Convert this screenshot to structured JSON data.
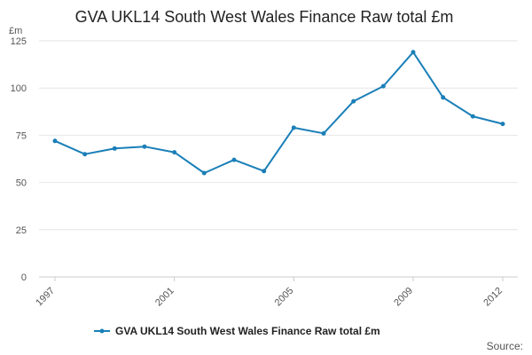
{
  "chart_data": {
    "type": "line",
    "title": "GVA UKL14 South West Wales Finance Raw total £m",
    "ylabel": "£m",
    "xlabel": "",
    "x": [
      1997,
      1998,
      1999,
      2000,
      2001,
      2002,
      2003,
      2004,
      2005,
      2006,
      2007,
      2008,
      2009,
      2010,
      2011,
      2012
    ],
    "series": [
      {
        "name": "GVA UKL14 South West Wales Finance Raw total £m",
        "values": [
          72,
          65,
          68,
          69,
          66,
          55,
          62,
          56,
          79,
          76,
          93,
          101,
          119,
          95,
          85,
          81
        ],
        "color": "#1a7fb8"
      }
    ],
    "ylim": [
      0,
      125
    ],
    "yticks": [
      0,
      25,
      50,
      75,
      100,
      125
    ],
    "xticks": [
      1997,
      2001,
      2005,
      2009,
      2012
    ],
    "grid": true,
    "legend": "bottom-center"
  },
  "source_label": "Source:"
}
